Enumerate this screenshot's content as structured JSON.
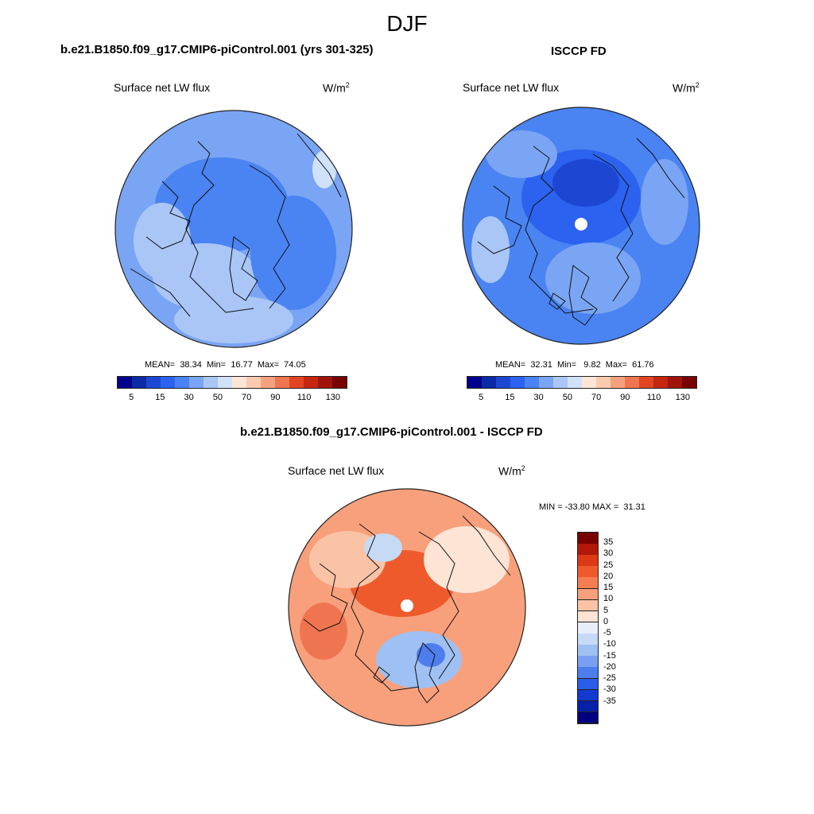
{
  "title": "DJF",
  "panels": [
    {
      "id": "model",
      "title": "b.e21.B1850.f09_g17.CMIP6-piControl.001 (yrs 301-325)",
      "variable": "Surface net LW flux",
      "units": "W/m",
      "units_sup": "2",
      "stats": "MEAN=  38.34  Min=  16.77  Max=  74.05"
    },
    {
      "id": "obs",
      "title": "ISCCP FD",
      "variable": "Surface net LW flux",
      "units": "W/m",
      "units_sup": "2",
      "stats": "MEAN=  32.31  Min=   9.82  Max=  61.76"
    },
    {
      "id": "diff",
      "title": "b.e21.B1850.f09_g17.CMIP6-piControl.001 - ISCCP FD",
      "variable": "Surface net LW flux",
      "units": "W/m",
      "units_sup": "2",
      "stats": "MIN = -33.80 MAX =  31.31"
    }
  ],
  "colorbar_abs": {
    "colors": [
      "#00008c",
      "#0a2aa6",
      "#1d47d3",
      "#2b62ef",
      "#4a83f2",
      "#7aa5f4",
      "#a9c6f7",
      "#d0e2fa",
      "#fde6d6",
      "#fbcbb0",
      "#f6a17e",
      "#ef7550",
      "#e24523",
      "#c5260e",
      "#a0150a",
      "#780000"
    ],
    "labels": [
      "5",
      "15",
      "30",
      "50",
      "70",
      "90",
      "110",
      "130"
    ]
  },
  "colorbar_diff": {
    "colors": [
      "#780000",
      "#b01808",
      "#dc3a16",
      "#ef5a2c",
      "#f57d52",
      "#f8a07c",
      "#fbc3a6",
      "#fde4d4",
      "#e7eef9",
      "#c6daf6",
      "#9fc0f2",
      "#789ff0",
      "#4e7eee",
      "#2a5de8",
      "#143ad0",
      "#0620a8",
      "#000080"
    ],
    "labels": [
      "35",
      "30",
      "25",
      "20",
      "15",
      "10",
      "5",
      "0",
      "-5",
      "-10",
      "-15",
      "-20",
      "-25",
      "-30",
      "-35"
    ]
  },
  "maps": {
    "model": {
      "base": "#7aa5f4",
      "blobs": [
        [
          "#4a83f2",
          0.45,
          0.4,
          0.28,
          0.2
        ],
        [
          "#a9c6f7",
          0.38,
          0.7,
          0.22,
          0.14
        ],
        [
          "#4a83f2",
          0.75,
          0.6,
          0.18,
          0.24
        ],
        [
          "#a9c6f7",
          0.2,
          0.55,
          0.12,
          0.16
        ],
        [
          "#d0e2fa",
          0.88,
          0.25,
          0.05,
          0.08
        ],
        [
          "#a9c6f7",
          0.5,
          0.88,
          0.25,
          0.1
        ]
      ]
    },
    "obs": {
      "base": "#4a83f2",
      "blobs": [
        [
          "#2b62ef",
          0.5,
          0.38,
          0.25,
          0.2
        ],
        [
          "#1d47d3",
          0.52,
          0.32,
          0.14,
          0.1
        ],
        [
          "#7aa5f4",
          0.55,
          0.72,
          0.2,
          0.15
        ],
        [
          "#7aa5f4",
          0.25,
          0.2,
          0.15,
          0.1
        ],
        [
          "#a9c6f7",
          0.12,
          0.6,
          0.08,
          0.14
        ],
        [
          "#7aa5f4",
          0.85,
          0.4,
          0.1,
          0.18
        ]
      ]
    },
    "diff": {
      "base": "#f8a07c",
      "blobs": [
        [
          "#ef5a2c",
          0.48,
          0.4,
          0.22,
          0.14
        ],
        [
          "#fbc3a6",
          0.25,
          0.3,
          0.16,
          0.12
        ],
        [
          "#9fc0f2",
          0.55,
          0.72,
          0.18,
          0.12
        ],
        [
          "#4e7eee",
          0.6,
          0.7,
          0.06,
          0.05
        ],
        [
          "#fde4d4",
          0.75,
          0.3,
          0.18,
          0.14
        ],
        [
          "#ef7550",
          0.15,
          0.6,
          0.1,
          0.12
        ],
        [
          "#c6daf6",
          0.4,
          0.25,
          0.08,
          0.06
        ]
      ]
    }
  }
}
